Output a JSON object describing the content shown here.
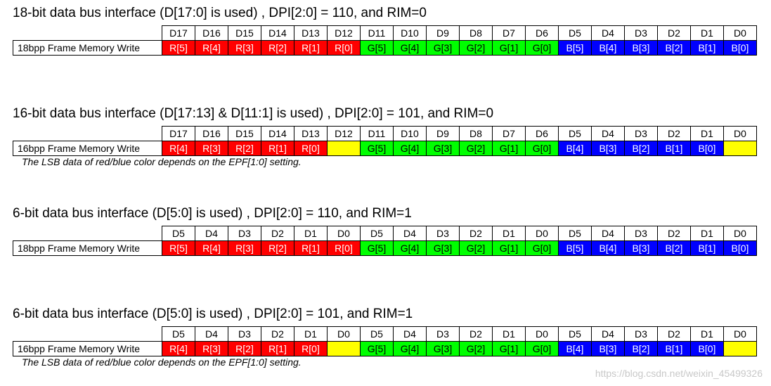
{
  "colors": {
    "red": "#ff0000",
    "green": "#00ff00",
    "blue": "#0000ff",
    "empty": "#ffff00"
  },
  "sections": [
    {
      "title": "18-bit data bus interface (D[17:0] is used) , DPI[2:0] = 110, and RIM=0",
      "pins": [
        "D17",
        "D16",
        "D15",
        "D14",
        "D13",
        "D12",
        "D11",
        "D10",
        "D9",
        "D8",
        "D7",
        "D6",
        "D5",
        "D4",
        "D3",
        "D2",
        "D1",
        "D0"
      ],
      "row_label": "18bpp Frame Memory Write",
      "cells": [
        {
          "text": "R[5]",
          "color": "red"
        },
        {
          "text": "R[4]",
          "color": "red"
        },
        {
          "text": "R[3]",
          "color": "red"
        },
        {
          "text": "R[2]",
          "color": "red"
        },
        {
          "text": "R[1]",
          "color": "red"
        },
        {
          "text": "R[0]",
          "color": "red"
        },
        {
          "text": "G[5]",
          "color": "green"
        },
        {
          "text": "G[4]",
          "color": "green"
        },
        {
          "text": "G[3]",
          "color": "green"
        },
        {
          "text": "G[2]",
          "color": "green"
        },
        {
          "text": "G[1]",
          "color": "green"
        },
        {
          "text": "G[0]",
          "color": "green"
        },
        {
          "text": "B[5]",
          "color": "blue"
        },
        {
          "text": "B[4]",
          "color": "blue"
        },
        {
          "text": "B[3]",
          "color": "blue"
        },
        {
          "text": "B[2]",
          "color": "blue"
        },
        {
          "text": "B[1]",
          "color": "blue"
        },
        {
          "text": "B[0]",
          "color": "blue"
        }
      ],
      "note": ""
    },
    {
      "title": "16-bit data bus interface (D[17:13] & D[11:1] is used) , DPI[2:0] = 101, and RIM=0",
      "pins": [
        "D17",
        "D16",
        "D15",
        "D14",
        "D13",
        "D12",
        "D11",
        "D10",
        "D9",
        "D8",
        "D7",
        "D6",
        "D5",
        "D4",
        "D3",
        "D2",
        "D1",
        "D0"
      ],
      "row_label": "16bpp Frame Memory Write",
      "cells": [
        {
          "text": "R[4]",
          "color": "red"
        },
        {
          "text": "R[3]",
          "color": "red"
        },
        {
          "text": "R[2]",
          "color": "red"
        },
        {
          "text": "R[1]",
          "color": "red"
        },
        {
          "text": "R[0]",
          "color": "red"
        },
        {
          "text": "",
          "color": "yellow"
        },
        {
          "text": "G[5]",
          "color": "green"
        },
        {
          "text": "G[4]",
          "color": "green"
        },
        {
          "text": "G[3]",
          "color": "green"
        },
        {
          "text": "G[2]",
          "color": "green"
        },
        {
          "text": "G[1]",
          "color": "green"
        },
        {
          "text": "G[0]",
          "color": "green"
        },
        {
          "text": "B[4]",
          "color": "blue"
        },
        {
          "text": "B[3]",
          "color": "blue"
        },
        {
          "text": "B[2]",
          "color": "blue"
        },
        {
          "text": "B[1]",
          "color": "blue"
        },
        {
          "text": "B[0]",
          "color": "blue"
        },
        {
          "text": "",
          "color": "yellow"
        }
      ],
      "note": "The LSB data of red/blue color depends on the EPF[1:0] setting."
    },
    {
      "title": "6-bit data bus interface (D[5:0] is used) , DPI[2:0] = 110, and RIM=1",
      "pins": [
        "D5",
        "D4",
        "D3",
        "D2",
        "D1",
        "D0",
        "D5",
        "D4",
        "D3",
        "D2",
        "D1",
        "D0",
        "D5",
        "D4",
        "D3",
        "D2",
        "D1",
        "D0"
      ],
      "row_label": "18bpp Frame Memory Write",
      "cells": [
        {
          "text": "R[5]",
          "color": "red"
        },
        {
          "text": "R[4]",
          "color": "red"
        },
        {
          "text": "R[3]",
          "color": "red"
        },
        {
          "text": "R[2]",
          "color": "red"
        },
        {
          "text": "R[1]",
          "color": "red"
        },
        {
          "text": "R[0]",
          "color": "red"
        },
        {
          "text": "G[5]",
          "color": "green"
        },
        {
          "text": "G[4]",
          "color": "green"
        },
        {
          "text": "G[3]",
          "color": "green"
        },
        {
          "text": "G[2]",
          "color": "green"
        },
        {
          "text": "G[1]",
          "color": "green"
        },
        {
          "text": "G[0]",
          "color": "green"
        },
        {
          "text": "B[5]",
          "color": "blue"
        },
        {
          "text": "B[4]",
          "color": "blue"
        },
        {
          "text": "B[3]",
          "color": "blue"
        },
        {
          "text": "B[2]",
          "color": "blue"
        },
        {
          "text": "B[1]",
          "color": "blue"
        },
        {
          "text": "B[0]",
          "color": "blue"
        }
      ],
      "note": ""
    },
    {
      "title": "6-bit data bus interface (D[5:0] is used) , DPI[2:0] = 101, and RIM=1",
      "pins": [
        "D5",
        "D4",
        "D3",
        "D2",
        "D1",
        "D0",
        "D5",
        "D4",
        "D3",
        "D2",
        "D1",
        "D0",
        "D5",
        "D4",
        "D3",
        "D2",
        "D1",
        "D0"
      ],
      "row_label": "16bpp Frame Memory Write",
      "cells": [
        {
          "text": "R[4]",
          "color": "red"
        },
        {
          "text": "R[3]",
          "color": "red"
        },
        {
          "text": "R[2]",
          "color": "red"
        },
        {
          "text": "R[1]",
          "color": "red"
        },
        {
          "text": "R[0]",
          "color": "red"
        },
        {
          "text": "",
          "color": "yellow"
        },
        {
          "text": "G[5]",
          "color": "green"
        },
        {
          "text": "G[4]",
          "color": "green"
        },
        {
          "text": "G[3]",
          "color": "green"
        },
        {
          "text": "G[2]",
          "color": "green"
        },
        {
          "text": "G[1]",
          "color": "green"
        },
        {
          "text": "G[0]",
          "color": "green"
        },
        {
          "text": "B[4]",
          "color": "blue"
        },
        {
          "text": "B[3]",
          "color": "blue"
        },
        {
          "text": "B[2]",
          "color": "blue"
        },
        {
          "text": "B[1]",
          "color": "blue"
        },
        {
          "text": "B[0]",
          "color": "blue"
        },
        {
          "text": "",
          "color": "yellow"
        }
      ],
      "note": "The LSB data of red/blue color depends on the EPF[1:0] setting."
    }
  ],
  "watermark": "https://blog.csdn.net/weixin_45499326"
}
